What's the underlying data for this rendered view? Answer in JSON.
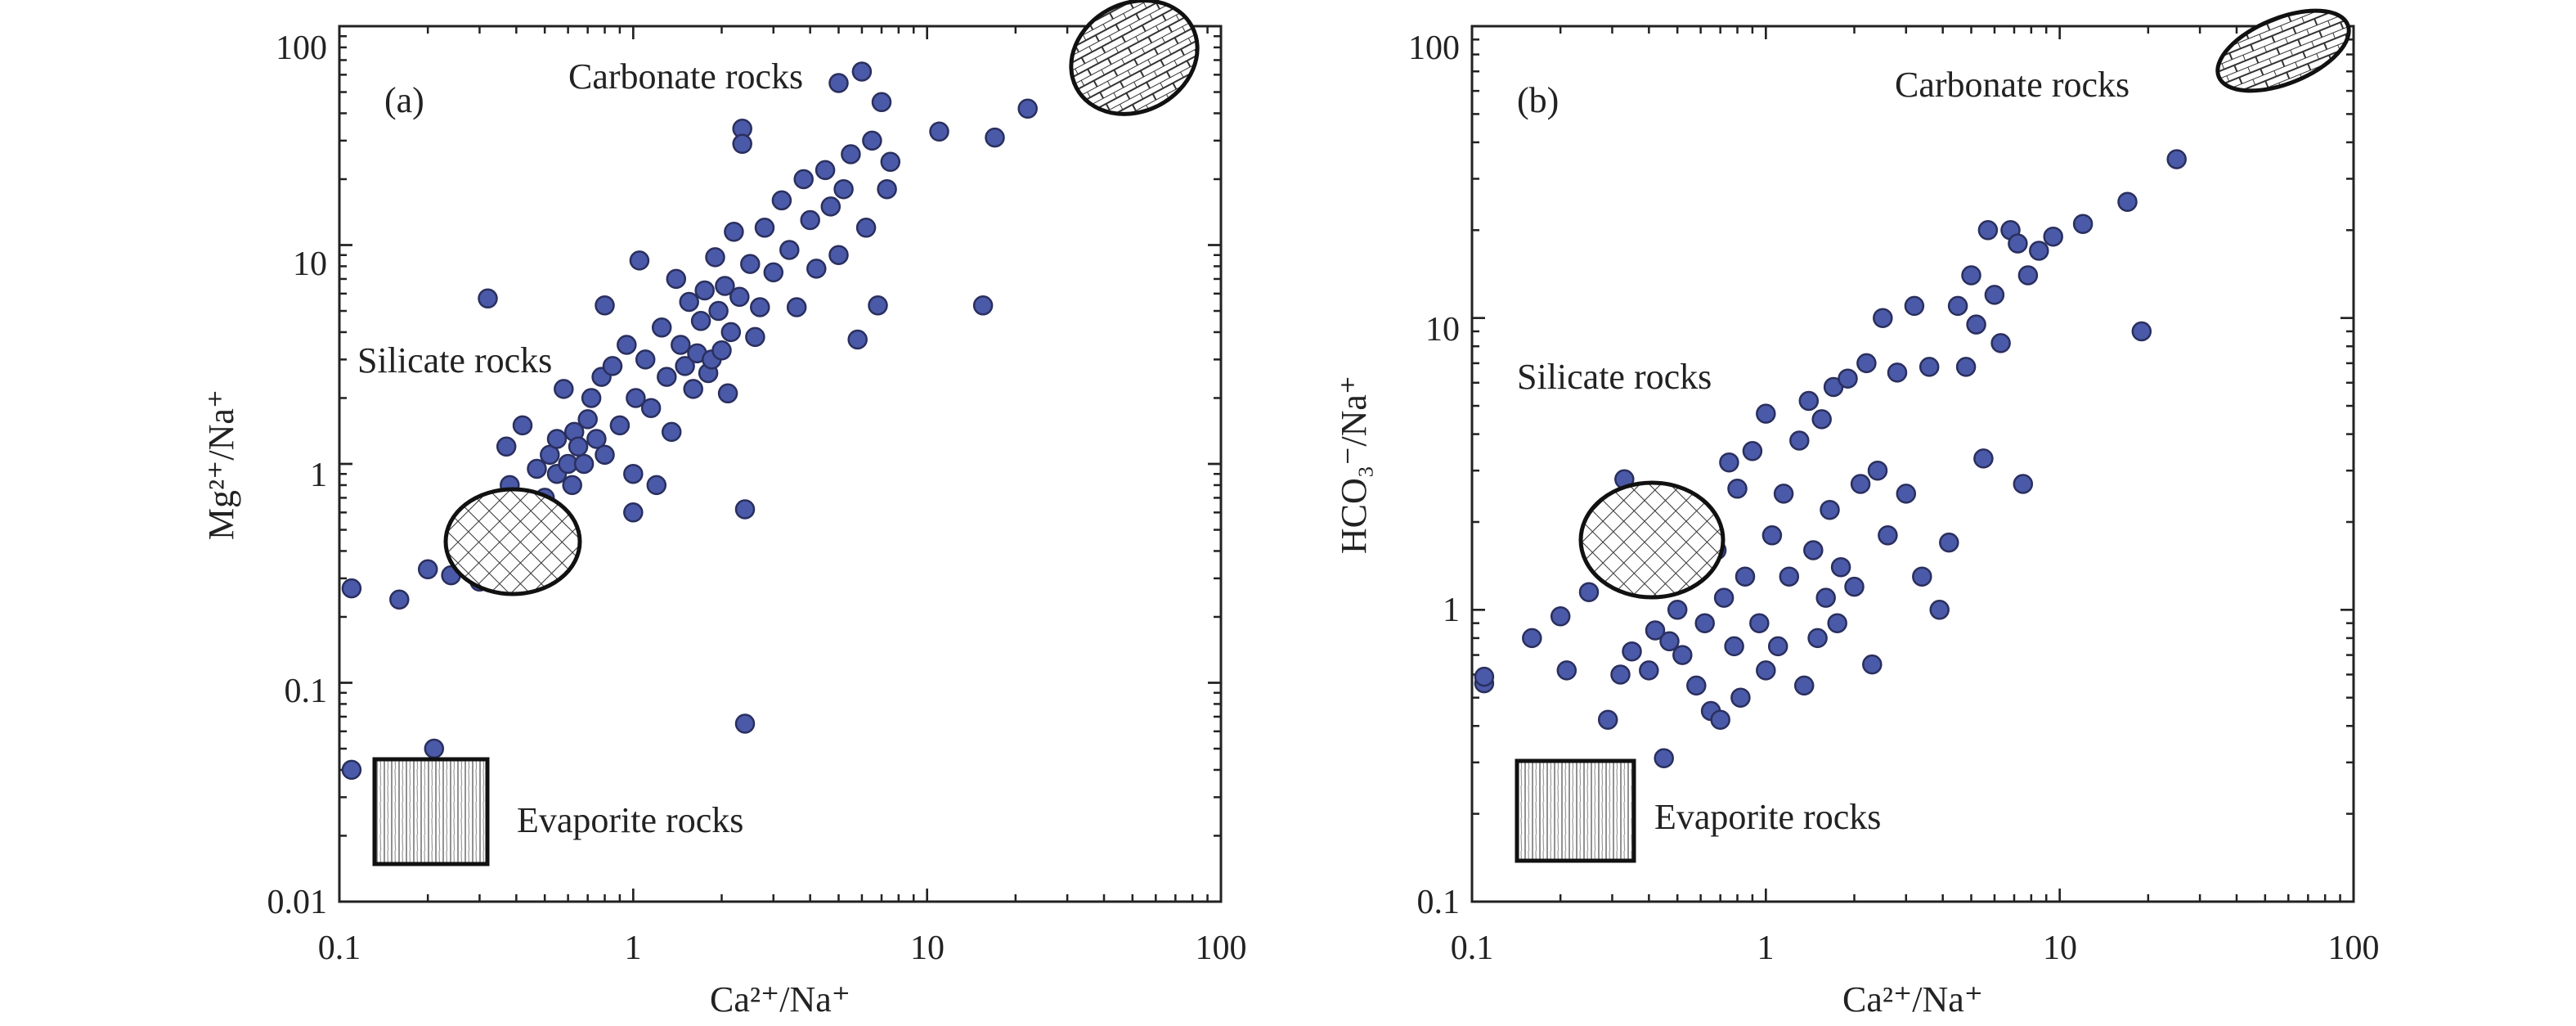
{
  "chart_data": [
    {
      "type": "scatter",
      "panel": "(a)",
      "xlabel": "Ca²⁺/Na⁺",
      "ylabel": "Mg²⁺/Na⁺",
      "x_scale": "log",
      "y_scale": "log",
      "xlim": [
        0.1,
        100
      ],
      "ylim": [
        0.01,
        100
      ],
      "x_ticks": [
        "0.1",
        "1",
        "10",
        "100"
      ],
      "y_ticks": [
        "0.01",
        "0.1",
        "1",
        "10",
        "100"
      ],
      "annotations": [
        "Carbonate rocks",
        "Silicate rocks",
        "Evaporite rocks"
      ],
      "point_color": "#4a5aa8",
      "points": [
        [
          0.11,
          0.27
        ],
        [
          0.11,
          0.04
        ],
        [
          0.16,
          0.24
        ],
        [
          0.2,
          0.33
        ],
        [
          0.21,
          0.05
        ],
        [
          0.24,
          0.31
        ],
        [
          0.25,
          0.4
        ],
        [
          0.28,
          0.36
        ],
        [
          0.3,
          0.29
        ],
        [
          0.31,
          0.62
        ],
        [
          0.32,
          5.7
        ],
        [
          0.33,
          0.45
        ],
        [
          0.35,
          0.55
        ],
        [
          0.37,
          1.2
        ],
        [
          0.38,
          0.8
        ],
        [
          0.4,
          0.5
        ],
        [
          0.42,
          1.5
        ],
        [
          0.45,
          0.62
        ],
        [
          0.47,
          0.95
        ],
        [
          0.5,
          0.7
        ],
        [
          0.52,
          1.1
        ],
        [
          0.55,
          1.3
        ],
        [
          0.55,
          0.9
        ],
        [
          0.58,
          2.2
        ],
        [
          0.6,
          1.0
        ],
        [
          0.62,
          0.8
        ],
        [
          0.63,
          1.4
        ],
        [
          0.65,
          1.2
        ],
        [
          0.68,
          1.0
        ],
        [
          0.7,
          1.6
        ],
        [
          0.72,
          2.0
        ],
        [
          0.75,
          1.3
        ],
        [
          0.78,
          2.5
        ],
        [
          0.8,
          5.3
        ],
        [
          0.8,
          1.1
        ],
        [
          0.85,
          2.8
        ],
        [
          0.9,
          1.5
        ],
        [
          0.95,
          3.5
        ],
        [
          1.0,
          0.6
        ],
        [
          1.0,
          0.9
        ],
        [
          1.02,
          2.0
        ],
        [
          1.05,
          8.5
        ],
        [
          1.1,
          3.0
        ],
        [
          1.15,
          1.8
        ],
        [
          1.2,
          0.8
        ],
        [
          1.25,
          4.2
        ],
        [
          1.3,
          2.5
        ],
        [
          1.35,
          1.4
        ],
        [
          1.4,
          7.0
        ],
        [
          1.45,
          3.5
        ],
        [
          1.5,
          2.8
        ],
        [
          1.55,
          5.5
        ],
        [
          1.6,
          2.2
        ],
        [
          1.65,
          3.2
        ],
        [
          1.7,
          4.5
        ],
        [
          1.75,
          6.2
        ],
        [
          1.8,
          2.6
        ],
        [
          1.85,
          3.0
        ],
        [
          1.9,
          8.8
        ],
        [
          1.95,
          5.0
        ],
        [
          2.0,
          3.3
        ],
        [
          2.05,
          6.5
        ],
        [
          2.1,
          2.1
        ],
        [
          2.15,
          4.0
        ],
        [
          2.2,
          11.5
        ],
        [
          2.3,
          5.8
        ],
        [
          2.35,
          34.0
        ],
        [
          2.35,
          29.0
        ],
        [
          2.4,
          0.62
        ],
        [
          2.4,
          0.065
        ],
        [
          2.5,
          8.2
        ],
        [
          2.6,
          3.8
        ],
        [
          2.7,
          5.2
        ],
        [
          2.8,
          12.0
        ],
        [
          3.0,
          7.5
        ],
        [
          3.2,
          16.0
        ],
        [
          3.4,
          9.5
        ],
        [
          3.6,
          5.2
        ],
        [
          3.8,
          20.0
        ],
        [
          4.0,
          13.0
        ],
        [
          4.2,
          7.8
        ],
        [
          4.5,
          22.0
        ],
        [
          4.7,
          15.0
        ],
        [
          5.0,
          9.0
        ],
        [
          5.0,
          55.0
        ],
        [
          5.2,
          18.0
        ],
        [
          5.5,
          26.0
        ],
        [
          5.8,
          3.7
        ],
        [
          6.0,
          62.0
        ],
        [
          6.2,
          12.0
        ],
        [
          6.5,
          30.0
        ],
        [
          6.8,
          5.3
        ],
        [
          7.0,
          45.0
        ],
        [
          7.3,
          18.0
        ],
        [
          7.5,
          24.0
        ],
        [
          11.0,
          33.0
        ],
        [
          15.5,
          5.3
        ],
        [
          17.0,
          31.0
        ],
        [
          22.0,
          42.0
        ]
      ]
    },
    {
      "type": "scatter",
      "panel": "(b)",
      "xlabel": "Ca²⁺/Na⁺",
      "ylabel": "HCO₃⁻/Na⁺",
      "x_scale": "log",
      "y_scale": "log",
      "xlim": [
        0.1,
        100
      ],
      "ylim": [
        0.1,
        100
      ],
      "x_ticks": [
        "0.1",
        "1",
        "10",
        "100"
      ],
      "y_ticks": [
        "0.1",
        "1",
        "10",
        "100"
      ],
      "annotations": [
        "Carbonate rocks",
        "Silicate rocks",
        "Evaporite rocks"
      ],
      "point_color": "#4a5aa8",
      "points": [
        [
          0.11,
          0.56
        ],
        [
          0.11,
          0.59
        ],
        [
          0.16,
          0.8
        ],
        [
          0.2,
          0.95
        ],
        [
          0.21,
          0.62
        ],
        [
          0.25,
          1.15
        ],
        [
          0.29,
          0.42
        ],
        [
          0.32,
          0.6
        ],
        [
          0.33,
          2.8
        ],
        [
          0.35,
          0.72
        ],
        [
          0.38,
          1.5
        ],
        [
          0.4,
          0.62
        ],
        [
          0.42,
          0.85
        ],
        [
          0.45,
          0.31
        ],
        [
          0.47,
          0.78
        ],
        [
          0.5,
          1.0
        ],
        [
          0.52,
          0.7
        ],
        [
          0.55,
          1.3
        ],
        [
          0.58,
          0.55
        ],
        [
          0.6,
          1.9
        ],
        [
          0.62,
          0.9
        ],
        [
          0.65,
          0.45
        ],
        [
          0.68,
          1.6
        ],
        [
          0.7,
          0.42
        ],
        [
          0.72,
          1.1
        ],
        [
          0.75,
          3.2
        ],
        [
          0.78,
          0.75
        ],
        [
          0.8,
          2.6
        ],
        [
          0.82,
          0.5
        ],
        [
          0.85,
          1.3
        ],
        [
          0.9,
          3.5
        ],
        [
          0.95,
          0.9
        ],
        [
          1.0,
          4.7
        ],
        [
          1.0,
          0.62
        ],
        [
          1.05,
          1.8
        ],
        [
          1.1,
          0.75
        ],
        [
          1.15,
          2.5
        ],
        [
          1.2,
          1.3
        ],
        [
          1.3,
          3.8
        ],
        [
          1.35,
          0.55
        ],
        [
          1.4,
          5.2
        ],
        [
          1.45,
          1.6
        ],
        [
          1.5,
          0.8
        ],
        [
          1.55,
          4.5
        ],
        [
          1.6,
          1.1
        ],
        [
          1.65,
          2.2
        ],
        [
          1.7,
          5.8
        ],
        [
          1.75,
          0.9
        ],
        [
          1.8,
          1.4
        ],
        [
          1.9,
          6.2
        ],
        [
          2.0,
          1.2
        ],
        [
          2.1,
          2.7
        ],
        [
          2.2,
          7.0
        ],
        [
          2.3,
          0.65
        ],
        [
          2.4,
          3.0
        ],
        [
          2.5,
          10.0
        ],
        [
          2.6,
          1.8
        ],
        [
          2.8,
          6.5
        ],
        [
          3.0,
          2.5
        ],
        [
          3.2,
          11.0
        ],
        [
          3.4,
          1.3
        ],
        [
          3.6,
          6.8
        ],
        [
          3.9,
          1.0
        ],
        [
          4.2,
          1.7
        ],
        [
          4.5,
          11.0
        ],
        [
          4.8,
          6.8
        ],
        [
          5.0,
          14.0
        ],
        [
          5.2,
          9.5
        ],
        [
          5.5,
          3.3
        ],
        [
          5.7,
          20.0
        ],
        [
          6.0,
          12.0
        ],
        [
          6.3,
          8.2
        ],
        [
          6.8,
          20.0
        ],
        [
          7.2,
          18.0
        ],
        [
          7.5,
          2.7
        ],
        [
          7.8,
          14.0
        ],
        [
          8.5,
          17.0
        ],
        [
          9.5,
          19.0
        ],
        [
          12.0,
          21.0
        ],
        [
          17.0,
          25.0
        ],
        [
          19.0,
          9.0
        ],
        [
          25.0,
          35.0
        ]
      ]
    }
  ]
}
